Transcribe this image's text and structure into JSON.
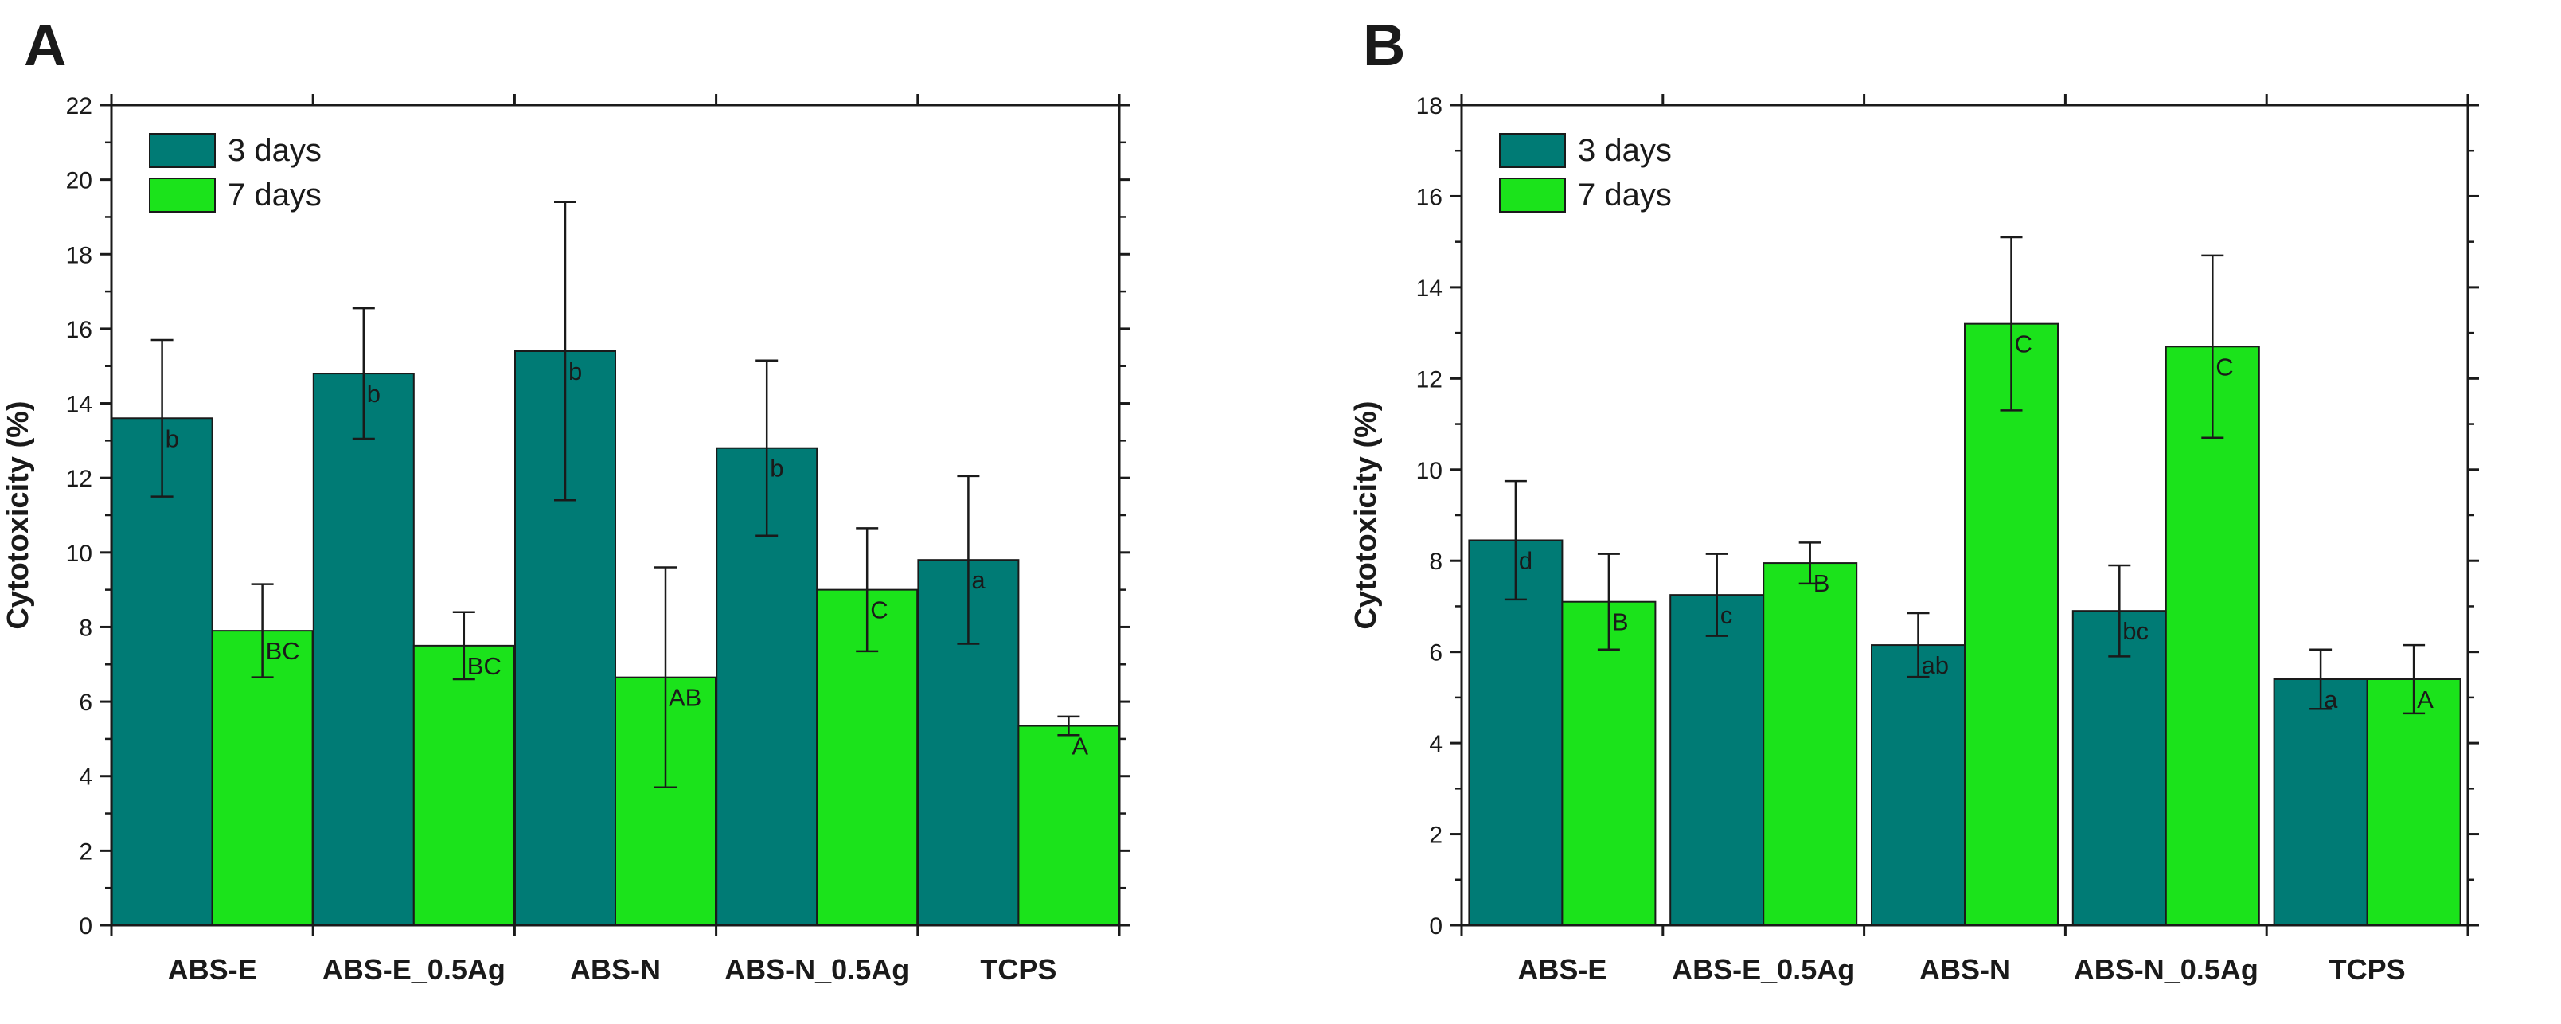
{
  "chart_data": [
    {
      "panel": "A",
      "type": "bar",
      "ylabel": "Cytotoxicity (%)",
      "xlabel": "",
      "ylim": [
        0,
        22
      ],
      "yticks": [
        0,
        2,
        4,
        6,
        8,
        10,
        12,
        14,
        16,
        18,
        20,
        22
      ],
      "categories": [
        "ABS-E",
        "ABS-E_0.5Ag",
        "ABS-N",
        "ABS-N_0.5Ag",
        "TCPS"
      ],
      "legend_position": "top-left",
      "series": [
        {
          "name": "3 days",
          "color": "#007b75",
          "values": [
            13.6,
            14.8,
            15.4,
            12.8,
            9.8
          ],
          "errors": [
            2.1,
            1.75,
            4.0,
            2.35,
            2.25
          ],
          "labels": [
            "b",
            "b",
            "b",
            "b",
            "a"
          ]
        },
        {
          "name": "7 days",
          "color": "#1be31b",
          "values": [
            7.9,
            7.5,
            6.65,
            9.0,
            5.35
          ],
          "errors": [
            1.25,
            0.9,
            2.95,
            1.65,
            0.25
          ],
          "labels": [
            "BC",
            "BC",
            "AB",
            "C",
            "A"
          ]
        }
      ]
    },
    {
      "panel": "B",
      "type": "bar",
      "ylabel": "Cytotoxicity (%)",
      "xlabel": "",
      "ylim": [
        0,
        18
      ],
      "yticks": [
        0,
        2,
        4,
        6,
        8,
        10,
        12,
        14,
        16,
        18
      ],
      "categories": [
        "ABS-E",
        "ABS-E_0.5Ag",
        "ABS-N",
        "ABS-N_0.5Ag",
        "TCPS"
      ],
      "legend_position": "top-left",
      "series": [
        {
          "name": "3 days",
          "color": "#007b75",
          "values": [
            8.45,
            7.25,
            6.15,
            6.9,
            5.4
          ],
          "errors": [
            1.3,
            0.9,
            0.7,
            1.0,
            0.65
          ],
          "labels": [
            "d",
            "c",
            "ab",
            "bc",
            "a"
          ]
        },
        {
          "name": "7 days",
          "color": "#1be31b",
          "values": [
            7.1,
            7.95,
            13.2,
            12.7,
            5.4
          ],
          "errors": [
            1.05,
            0.45,
            1.9,
            2.0,
            0.75
          ],
          "labels": [
            "B",
            "B",
            "C",
            "C",
            "A"
          ]
        }
      ]
    }
  ]
}
